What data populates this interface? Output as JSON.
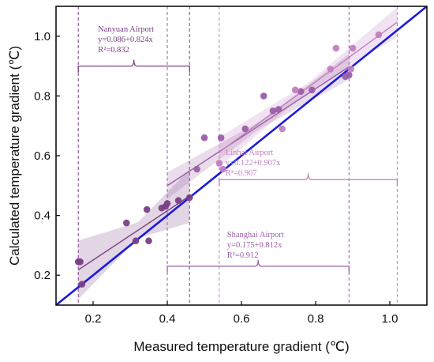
{
  "chart_data": {
    "type": "scatter",
    "xlabel": "Measured temperature gradient (℃)",
    "ylabel": "Calculated temperature gradient (℃)",
    "xlim": [
      0.1,
      1.1
    ],
    "ylim": [
      0.1,
      1.1
    ],
    "xticks": [
      0.2,
      0.4,
      0.6,
      0.8,
      1.0
    ],
    "yticks": [
      0.2,
      0.4,
      0.6,
      0.8,
      1.0
    ],
    "xtick_labels": [
      "0.2",
      "0.4",
      "0.6",
      "0.8",
      "1.0"
    ],
    "ytick_labels": [
      "0.2",
      "0.4",
      "0.6",
      "0.8",
      "1.0"
    ],
    "reference_line": {
      "x": [
        0.1,
        1.1
      ],
      "y": [
        0.1,
        1.1
      ],
      "color": "#1a1adb"
    },
    "series": [
      {
        "name": "Nanyuan Airport",
        "equation": "y=0.086+0.824x",
        "r2": "R²=0.832",
        "intercept": 0.086,
        "slope": 0.824,
        "fit_range": [
          0.16,
          0.46
        ],
        "range_marks": [
          0.16,
          0.4,
          0.46
        ],
        "color": "#7a3f85",
        "points": [
          [
            0.16,
            0.245
          ],
          [
            0.165,
            0.245
          ],
          [
            0.17,
            0.17
          ],
          [
            0.29,
            0.375
          ],
          [
            0.315,
            0.315
          ],
          [
            0.345,
            0.42
          ],
          [
            0.35,
            0.315
          ],
          [
            0.385,
            0.425
          ],
          [
            0.395,
            0.43
          ],
          [
            0.4,
            0.44
          ],
          [
            0.43,
            0.45
          ],
          [
            0.46,
            0.46
          ]
        ]
      },
      {
        "name": "Shanghai Airport",
        "equation": "y=0.175+0.812x",
        "r2": "R²=0.912",
        "intercept": 0.175,
        "slope": 0.812,
        "fit_range": [
          0.4,
          0.89
        ],
        "range_marks": [
          0.4,
          0.89
        ],
        "color": "#9a5ea6",
        "points": [
          [
            0.48,
            0.555
          ],
          [
            0.5,
            0.66
          ],
          [
            0.545,
            0.66
          ],
          [
            0.61,
            0.69
          ],
          [
            0.66,
            0.8
          ],
          [
            0.685,
            0.75
          ],
          [
            0.7,
            0.755
          ],
          [
            0.76,
            0.815
          ],
          [
            0.79,
            0.82
          ],
          [
            0.88,
            0.865
          ],
          [
            0.89,
            0.87
          ]
        ]
      },
      {
        "name": "Linhai Airport",
        "equation": "y=0.122+0.907x",
        "r2": "R²=0.907",
        "intercept": 0.122,
        "slope": 0.907,
        "fit_range": [
          0.54,
          1.02
        ],
        "range_marks": [
          0.54,
          1.02
        ],
        "color": "#c07fbf",
        "points": [
          [
            0.54,
            0.575
          ],
          [
            0.55,
            0.555
          ],
          [
            0.71,
            0.69
          ],
          [
            0.745,
            0.82
          ],
          [
            0.84,
            0.89
          ],
          [
            0.855,
            0.96
          ],
          [
            0.895,
            0.89
          ],
          [
            0.9,
            0.96
          ],
          [
            0.97,
            1.005
          ]
        ]
      }
    ]
  }
}
